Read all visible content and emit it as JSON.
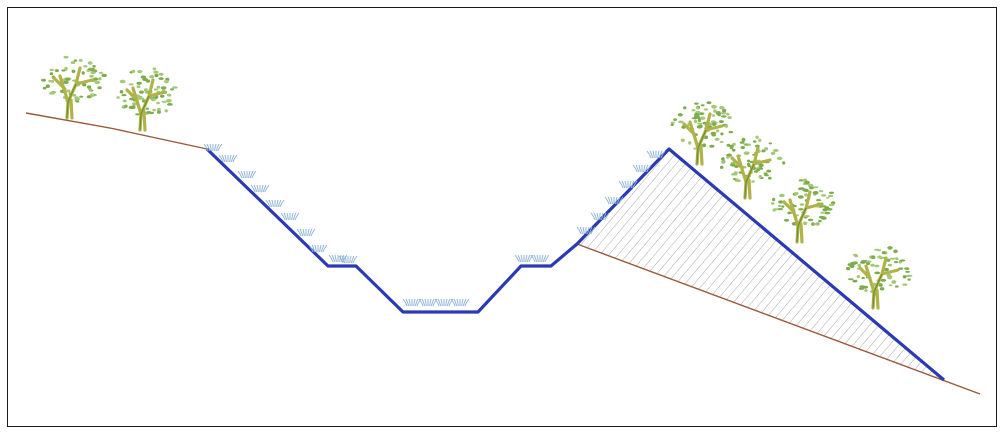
{
  "diagram": {
    "type": "channel-cross-section",
    "elements": [
      "existing-ground-line",
      "channel-profile",
      "fill-embankment",
      "trees",
      "grass-tufts"
    ]
  },
  "colors": {
    "profile": "#2b3ab4",
    "ground": "#9a5a3c",
    "hatch": "#a9a9a9",
    "foliage": "#7cac4c",
    "foliage_light": "#a5c878",
    "trunk": "#b0b34a",
    "grass": "#8fb6d6",
    "frame": "#1a1a1a"
  }
}
